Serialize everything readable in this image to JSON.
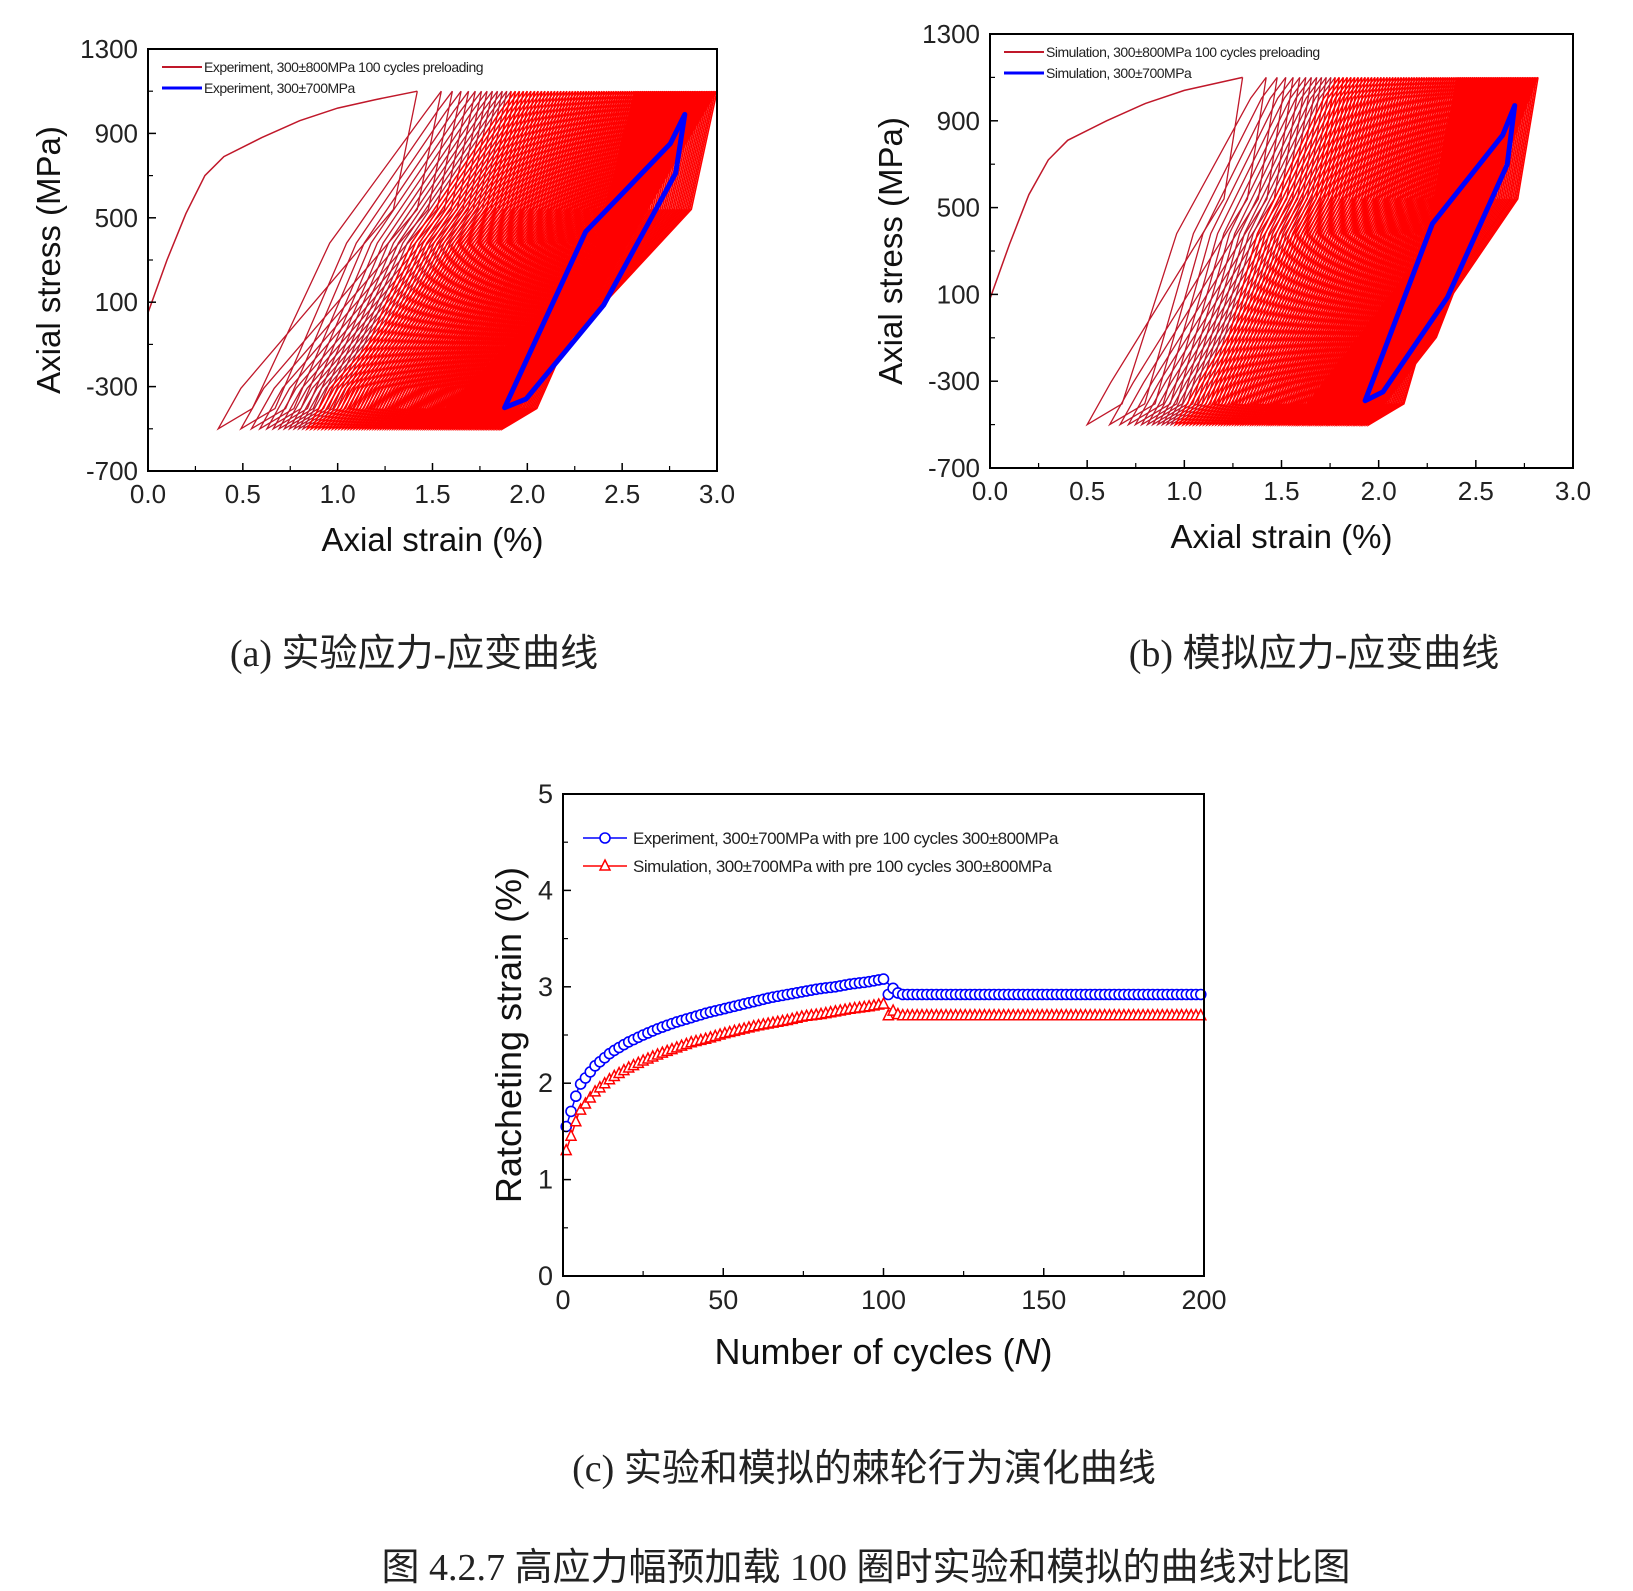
{
  "captions": {
    "a": "(a)  实验应力-应变曲线",
    "b": "(b)  模拟应力-应变曲线",
    "c": "(c)  实验和模拟的棘轮行为演化曲线",
    "figure": "图 4.2.7  高应力幅预加载 100 圈时实验和模拟的曲线对比图"
  },
  "colors": {
    "red": "#ff0000",
    "darkred": "#c0182a",
    "blue": "#0000ff",
    "axis": "#000000"
  },
  "chart_data": [
    {
      "id": "a",
      "type": "line",
      "xlabel": "Axial strain (%)",
      "ylabel": "Axial stress (MPa)",
      "xlim": [
        0,
        3.0
      ],
      "ylim": [
        -700,
        1300
      ],
      "xticks": [
        "0.0",
        "0.5",
        "1.0",
        "1.5",
        "2.0",
        "2.5",
        "3.0"
      ],
      "yticks": [
        "-700",
        "-300",
        "100",
        "500",
        "900",
        "1300"
      ],
      "legend": [
        "Experiment, 300±800MPa 100 cycles preloading",
        "Experiment, 300±700MPa"
      ],
      "legend_position": "top-left",
      "initial_loading": [
        [
          0,
          50
        ],
        [
          0.1,
          300
        ],
        [
          0.2,
          520
        ],
        [
          0.3,
          700
        ],
        [
          0.4,
          790
        ],
        [
          0.6,
          880
        ],
        [
          0.8,
          960
        ],
        [
          1.0,
          1020
        ],
        [
          1.2,
          1060
        ],
        [
          1.42,
          1100
        ]
      ],
      "preload_loops": {
        "count": 100,
        "valley_strain_first": 0.37,
        "valley_strain_last": 1.87,
        "peak_strain_first": 1.42,
        "peak_strain_last": 3.0,
        "min_stress": -500,
        "max_stress": 1100
      },
      "final_loop": {
        "min_strain": 1.88,
        "min_stress": -400,
        "max_strain": 2.83,
        "max_stress": 990
      }
    },
    {
      "id": "b",
      "type": "line",
      "xlabel": "Axial strain (%)",
      "ylabel": "Axial stress (MPa)",
      "xlim": [
        0,
        3.0
      ],
      "ylim": [
        -700,
        1300
      ],
      "xticks": [
        "0.0",
        "0.5",
        "1.0",
        "1.5",
        "2.0",
        "2.5",
        "3.0"
      ],
      "yticks": [
        "-700",
        "-300",
        "100",
        "500",
        "900",
        "1300"
      ],
      "legend": [
        "Simulation, 300±800MPa 100 cycles preloading",
        "Simulation, 300±700MPa"
      ],
      "legend_position": "top-left",
      "initial_loading": [
        [
          0,
          80
        ],
        [
          0.1,
          330
        ],
        [
          0.2,
          560
        ],
        [
          0.3,
          720
        ],
        [
          0.4,
          810
        ],
        [
          0.6,
          900
        ],
        [
          0.8,
          980
        ],
        [
          1.0,
          1040
        ],
        [
          1.3,
          1100
        ]
      ],
      "preload_loops": {
        "count": 100,
        "valley_strain_first": 0.5,
        "valley_strain_last": 1.95,
        "peak_strain_first": 1.3,
        "peak_strain_last": 2.82,
        "min_stress": -500,
        "max_stress": 1100
      },
      "final_loop": {
        "min_strain": 1.93,
        "min_stress": -390,
        "max_strain": 2.7,
        "max_stress": 970
      }
    },
    {
      "id": "c",
      "type": "line",
      "xlabel": "Number of cycles (",
      "xlabel_italic": "N",
      "xlabel_end": ")",
      "ylabel": "Ratcheting strain (%)",
      "xlim": [
        0,
        200
      ],
      "ylim": [
        0,
        5
      ],
      "xticks": [
        "0",
        "50",
        "100",
        "150",
        "200"
      ],
      "yticks": [
        "0",
        "1",
        "2",
        "3",
        "4",
        "5"
      ],
      "legend_position": "top-left",
      "x": [
        1,
        5,
        10,
        15,
        20,
        25,
        30,
        35,
        40,
        45,
        50,
        55,
        60,
        65,
        70,
        75,
        80,
        85,
        90,
        95,
        100,
        105,
        110,
        115,
        120,
        125,
        130,
        135,
        140,
        145,
        150,
        155,
        160,
        165,
        170,
        175,
        180,
        185,
        190,
        195,
        200
      ],
      "series": [
        {
          "name": "Experiment, 300±700MPa with pre 100 cycles  300±800MPa",
          "marker": "circle",
          "values": [
            1.55,
            1.97,
            2.18,
            2.32,
            2.42,
            2.5,
            2.57,
            2.63,
            2.68,
            2.73,
            2.77,
            2.81,
            2.85,
            2.89,
            2.92,
            2.95,
            2.98,
            3.0,
            3.03,
            3.05,
            3.08,
            2.92,
            2.92,
            2.92,
            2.92,
            2.92,
            2.92,
            2.92,
            2.92,
            2.92,
            2.92,
            2.92,
            2.92,
            2.92,
            2.92,
            2.92,
            2.92,
            2.92,
            2.92,
            2.92,
            2.92
          ]
        },
        {
          "name": "Simulation, 300±700MPa with pre 100 cycles  300±800MPa",
          "marker": "star",
          "values": [
            1.3,
            1.7,
            1.91,
            2.05,
            2.15,
            2.23,
            2.3,
            2.36,
            2.42,
            2.46,
            2.51,
            2.55,
            2.59,
            2.62,
            2.65,
            2.69,
            2.71,
            2.74,
            2.77,
            2.79,
            2.82,
            2.7,
            2.7,
            2.7,
            2.7,
            2.7,
            2.7,
            2.7,
            2.7,
            2.7,
            2.7,
            2.7,
            2.7,
            2.7,
            2.7,
            2.7,
            2.7,
            2.7,
            2.7,
            2.7,
            2.7
          ]
        }
      ]
    }
  ]
}
